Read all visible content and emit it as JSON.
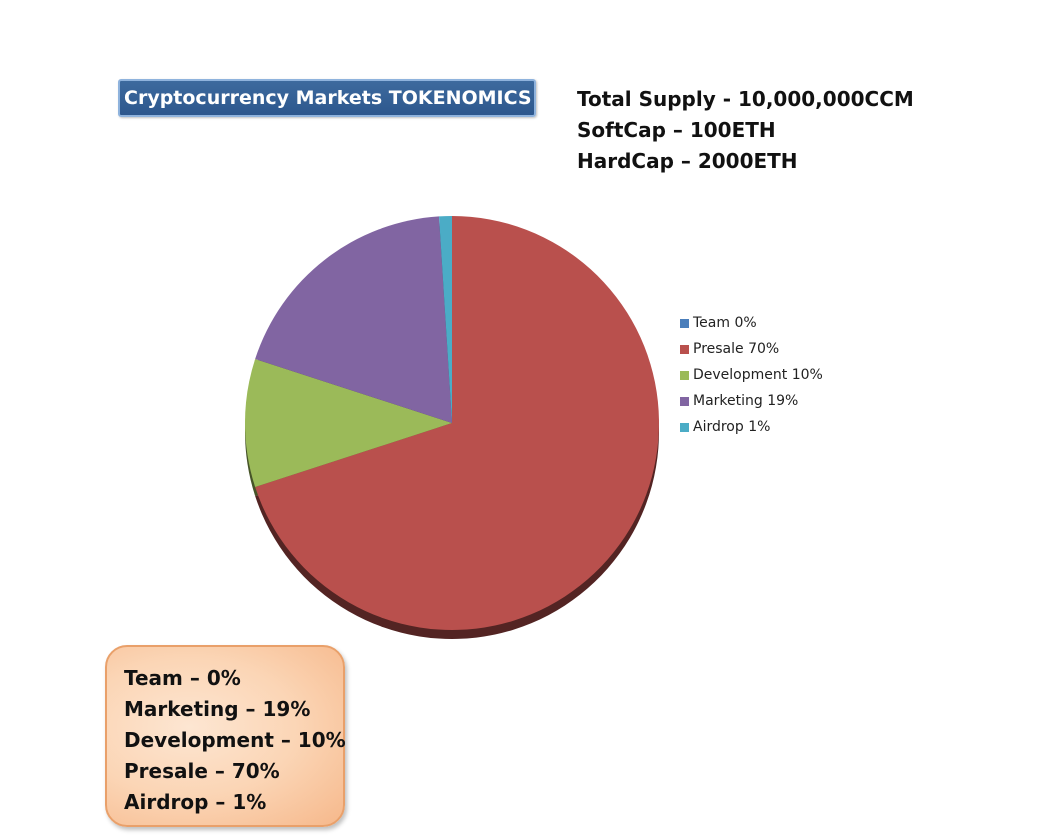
{
  "title": "Cryptocurrency Markets TOKENOMICS",
  "supply_info": {
    "total_supply": "Total Supply - 10,000,000CCM",
    "soft_cap": "SoftCap – 100ETH",
    "hard_cap": "HardCap – 2000ETH"
  },
  "chart_data": {
    "type": "pie",
    "slices": [
      {
        "name": "Team",
        "value": 0,
        "label": "Team 0%",
        "color": "#4a7ebb"
      },
      {
        "name": "Presale",
        "value": 70,
        "label": "Presale 70%",
        "color": "#b9504d"
      },
      {
        "name": "Development",
        "value": 10,
        "label": "Development 10%",
        "color": "#9bba59"
      },
      {
        "name": "Marketing",
        "value": 19,
        "label": "Marketing 19%",
        "color": "#8165a2"
      },
      {
        "name": "Airdrop",
        "value": 1,
        "label": "Airdrop 1%",
        "color": "#4bacc6"
      }
    ],
    "legend_position": "right"
  },
  "summary": {
    "lines": [
      "Team – 0%",
      "Marketing – 19%",
      "Development – 10%",
      "Presale – 70%",
      "Airdrop – 1%"
    ]
  }
}
